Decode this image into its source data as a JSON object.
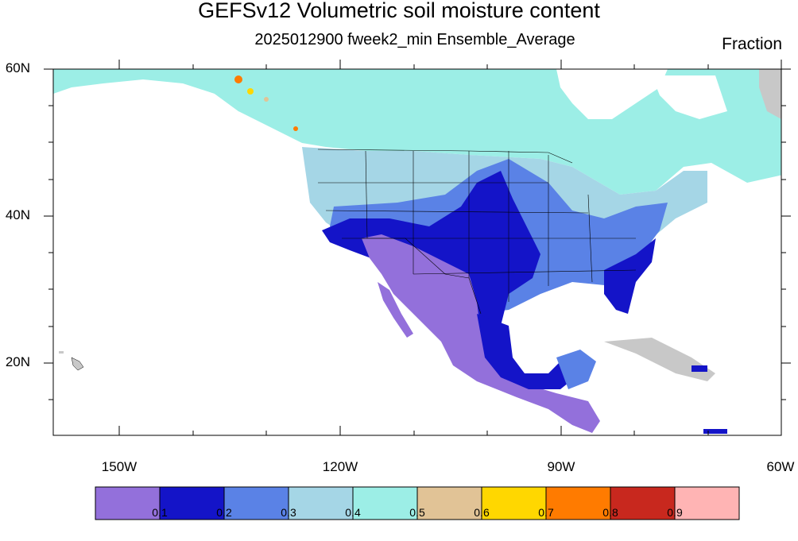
{
  "header": {
    "title": "GEFSv12 Volumetric soil moisture content",
    "subtitle": "2025012900 fweek2_min Ensemble_Average",
    "units": "Fraction"
  },
  "axes": {
    "lat_labels": [
      "60N",
      "40N",
      "20N"
    ],
    "lon_labels": [
      "150W",
      "120W",
      "90W",
      "60W"
    ]
  },
  "colorbar": {
    "labels": [
      "0.1",
      "0.2",
      "0.3",
      "0.4",
      "0.5",
      "0.6",
      "0.7",
      "0.8",
      "0.9"
    ],
    "colors": [
      "#9370db",
      "#1414c8",
      "#5a82e6",
      "#a5d6e6",
      "#9ceee6",
      "#e1c396",
      "#ffd700",
      "#ff7b00",
      "#c8281e",
      "#ffb4b4"
    ]
  },
  "colors": {
    "missing": "#c8c8c8",
    "border": "#000000"
  }
}
